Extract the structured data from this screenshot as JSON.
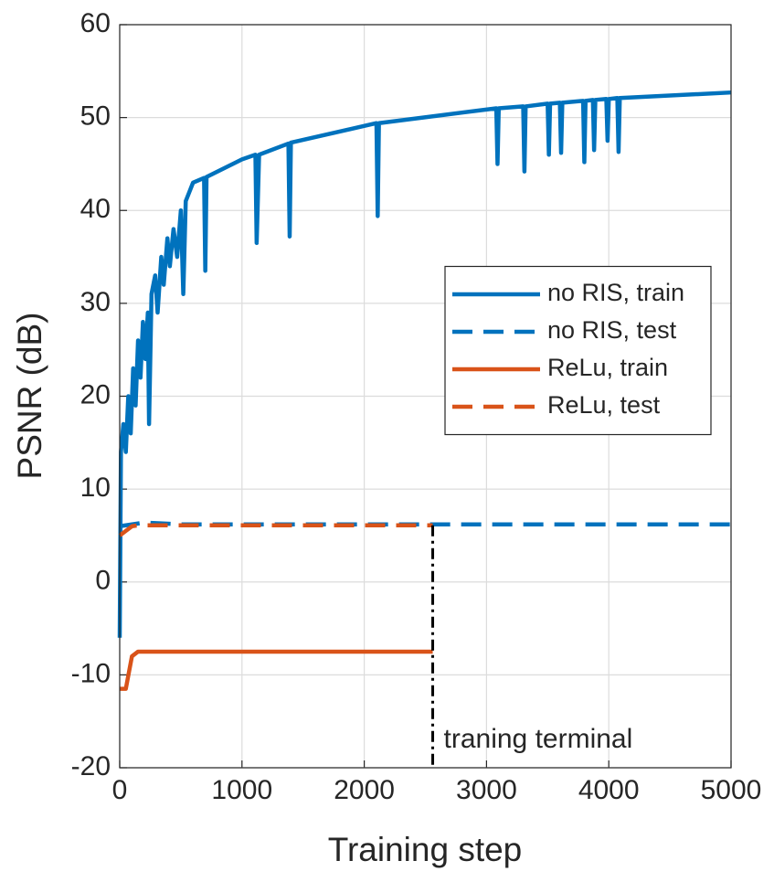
{
  "chart_data": {
    "type": "line",
    "xlabel": "Training step",
    "ylabel": "PSNR (dB)",
    "xlim": [
      0,
      5000
    ],
    "xticks": [
      0,
      1000,
      2000,
      3000,
      4000,
      5000
    ],
    "ylim": [
      -20,
      60
    ],
    "yticks": [
      -20,
      -10,
      0,
      10,
      20,
      30,
      40,
      50,
      60
    ],
    "grid": true,
    "legend": "east",
    "series": [
      {
        "name": "no RIS, train",
        "color": "#0072BD",
        "linestyle": "solid",
        "x": [
          0,
          10,
          30,
          50,
          70,
          90,
          110,
          130,
          150,
          170,
          190,
          210,
          230,
          240,
          260,
          290,
          310,
          340,
          360,
          390,
          410,
          440,
          470,
          500,
          520,
          540,
          570,
          600,
          690,
          700,
          710,
          1000,
          1110,
          1120,
          1140,
          1380,
          1390,
          1400,
          2100,
          2110,
          2120,
          3080,
          3090,
          3100,
          3300,
          3310,
          3320,
          3500,
          3510,
          3520,
          3600,
          3610,
          3620,
          3790,
          3800,
          3810,
          3870,
          3880,
          3890,
          3980,
          3990,
          4000,
          4070,
          4080,
          4090,
          5000
        ],
        "values": [
          -6,
          14,
          17,
          14,
          20,
          16,
          23,
          19,
          26,
          22,
          28,
          24,
          29,
          17,
          31,
          33,
          29,
          35,
          32,
          37,
          34,
          38,
          35,
          40,
          31,
          41,
          42,
          43,
          43.5,
          33.5,
          43.6,
          45.5,
          46,
          36.5,
          46,
          47.2,
          37.2,
          47.3,
          49.4,
          39.4,
          49.4,
          51,
          45,
          51,
          51.2,
          44.2,
          51.2,
          51.5,
          46,
          51.5,
          51.6,
          46.2,
          51.6,
          51.8,
          45.2,
          51.8,
          51.9,
          46.5,
          51.9,
          52,
          47.5,
          52,
          52.1,
          46.3,
          52.1,
          52.7
        ]
      },
      {
        "name": "no RIS, test",
        "color": "#0072BD",
        "linestyle": "dashed",
        "x": [
          0,
          200,
          500,
          5000
        ],
        "values": [
          6,
          6.4,
          6.2,
          6.2
        ]
      },
      {
        "name": "ReLu, train",
        "color": "#D95319",
        "linestyle": "solid",
        "x": [
          0,
          50,
          100,
          150,
          2560
        ],
        "values": [
          -11.5,
          -11.5,
          -8,
          -7.5,
          -7.5
        ]
      },
      {
        "name": "ReLu, test",
        "color": "#D95319",
        "linestyle": "dashed",
        "x": [
          0,
          50,
          100,
          150,
          2560
        ],
        "values": [
          5,
          5.5,
          6,
          6.1,
          6.1
        ]
      }
    ],
    "annotations": [
      {
        "text": "traning terminal",
        "x": 2560
      }
    ]
  }
}
